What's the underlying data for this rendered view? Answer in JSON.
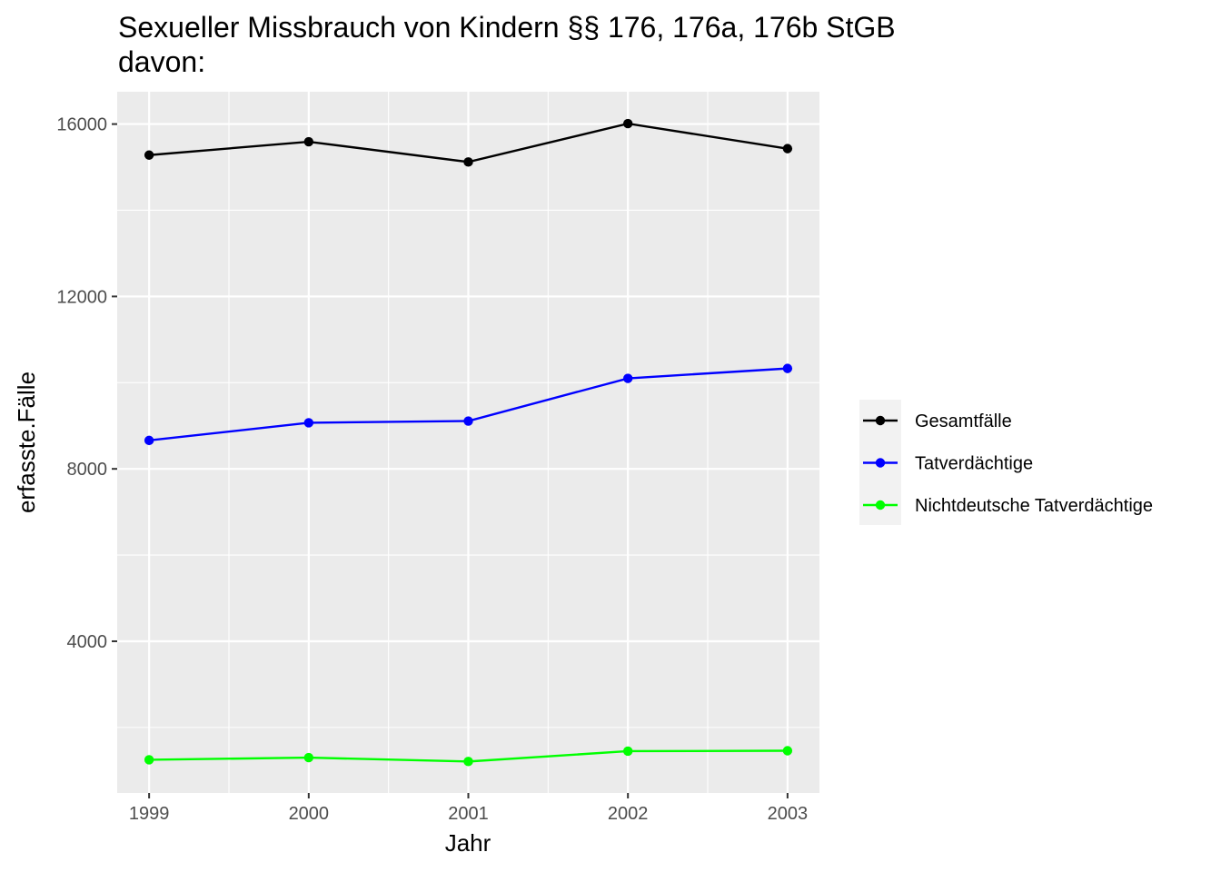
{
  "chart_data": {
    "type": "line",
    "title": "Sexueller Missbrauch von Kindern §§ 176, 176a, 176b StGB",
    "subtitle": "davon:",
    "xlabel": "Jahr",
    "ylabel": "erfasste.Fälle",
    "x": [
      1999,
      2000,
      2001,
      2002,
      2003
    ],
    "xtick_labels": [
      "1999",
      "2000",
      "2001",
      "2002",
      "2003"
    ],
    "xlim": [
      1998.8,
      2003.2
    ],
    "yticks": [
      4000,
      8000,
      12000,
      16000
    ],
    "ytick_labels": [
      "4000",
      "8000",
      "12000",
      "16000"
    ],
    "ylim": [
      480,
      16750
    ],
    "grid": true,
    "legend_position": "right",
    "series": [
      {
        "name": "Gesamtfälle",
        "color": "#000000",
        "values": [
          15280,
          15590,
          15120,
          16010,
          15430
        ]
      },
      {
        "name": "Tatverdächtige",
        "color": "#0000ff",
        "values": [
          8660,
          9070,
          9110,
          10100,
          10330
        ]
      },
      {
        "name": "Nichtdeutsche Tatverdächtige",
        "color": "#00ff00",
        "values": [
          1250,
          1300,
          1210,
          1450,
          1460
        ]
      }
    ]
  }
}
